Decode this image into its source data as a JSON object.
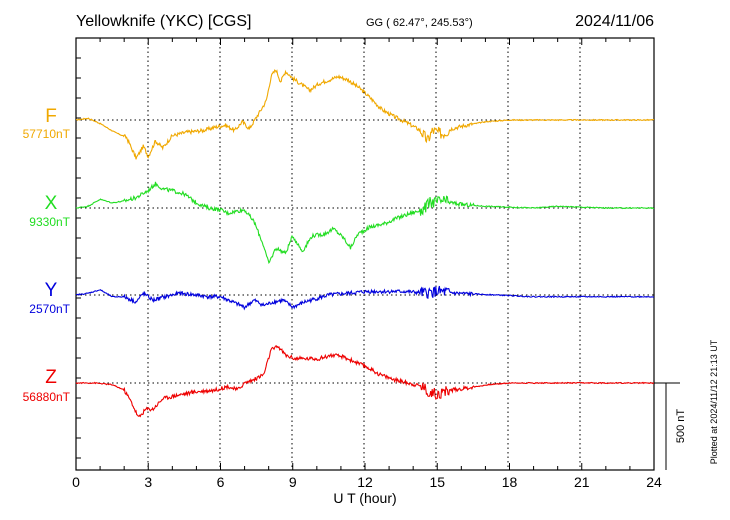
{
  "header": {
    "station": "Yellowknife (YKC)  [CGS]",
    "coords": "GG ( 62.47°, 245.53°)",
    "date": "2024/11/06"
  },
  "footer": {
    "plotted": "Plotted at 2024/11/12 21:13 UT"
  },
  "chart_data": {
    "type": "line",
    "title": "Yellowknife (YKC)  [CGS]",
    "xlabel": "U T (hour)",
    "ylabel": "",
    "xlim": [
      0,
      24
    ],
    "x_ticks": [
      0,
      3,
      6,
      9,
      12,
      15,
      18,
      21,
      24
    ],
    "x_tick_labels": [
      "0",
      "3",
      "6",
      "9",
      "12",
      "15",
      "18",
      "21",
      "24"
    ],
    "grid": true,
    "scale_bar": {
      "label": "500 nT",
      "value_nT": 500
    },
    "series": [
      {
        "name": "F",
        "baseline_label": "57710nT",
        "baseline_nT": 57710,
        "color": "#f0a800",
        "points": [
          [
            0,
            0
          ],
          [
            0.5,
            10
          ],
          [
            1,
            -20
          ],
          [
            1.6,
            -70
          ],
          [
            2.1,
            -100
          ],
          [
            2.5,
            -220
          ],
          [
            2.8,
            -150
          ],
          [
            3,
            -210
          ],
          [
            3.3,
            -120
          ],
          [
            3.6,
            -160
          ],
          [
            4,
            -90
          ],
          [
            4.6,
            -70
          ],
          [
            5.3,
            -60
          ],
          [
            5.8,
            -40
          ],
          [
            6.2,
            -30
          ],
          [
            6.6,
            -60
          ],
          [
            6.9,
            -10
          ],
          [
            7.2,
            -50
          ],
          [
            7.6,
            40
          ],
          [
            7.9,
            110
          ],
          [
            8.1,
            250
          ],
          [
            8.3,
            290
          ],
          [
            8.5,
            220
          ],
          [
            8.7,
            280
          ],
          [
            9,
            240
          ],
          [
            9.4,
            200
          ],
          [
            9.7,
            170
          ],
          [
            10.1,
            210
          ],
          [
            10.5,
            230
          ],
          [
            10.9,
            250
          ],
          [
            11.3,
            230
          ],
          [
            11.8,
            180
          ],
          [
            12.2,
            130
          ],
          [
            12.7,
            60
          ],
          [
            13.2,
            20
          ],
          [
            13.8,
            -20
          ],
          [
            14.3,
            -60
          ],
          [
            14.6,
            -120
          ],
          [
            14.8,
            -60
          ],
          [
            15.2,
            -80
          ],
          [
            15.6,
            -50
          ],
          [
            16.2,
            -30
          ],
          [
            17,
            -10
          ],
          [
            18,
            0
          ],
          [
            20,
            0
          ],
          [
            22,
            0
          ],
          [
            24,
            0
          ]
        ]
      },
      {
        "name": "X",
        "baseline_label": "9330nT",
        "baseline_nT": 9330,
        "color": "#22dd22",
        "points": [
          [
            0,
            0
          ],
          [
            0.5,
            10
          ],
          [
            1,
            50
          ],
          [
            1.5,
            30
          ],
          [
            2,
            40
          ],
          [
            2.5,
            60
          ],
          [
            3,
            100
          ],
          [
            3.3,
            140
          ],
          [
            3.6,
            110
          ],
          [
            4,
            100
          ],
          [
            4.5,
            80
          ],
          [
            5,
            30
          ],
          [
            5.5,
            0
          ],
          [
            6,
            -10
          ],
          [
            6.3,
            -30
          ],
          [
            6.6,
            -20
          ],
          [
            7,
            -10
          ],
          [
            7.4,
            -80
          ],
          [
            7.8,
            -220
          ],
          [
            8,
            -320
          ],
          [
            8.3,
            -230
          ],
          [
            8.7,
            -260
          ],
          [
            9,
            -160
          ],
          [
            9.4,
            -250
          ],
          [
            9.8,
            -160
          ],
          [
            10.3,
            -150
          ],
          [
            10.7,
            -120
          ],
          [
            11.1,
            -170
          ],
          [
            11.4,
            -230
          ],
          [
            11.7,
            -150
          ],
          [
            12.2,
            -110
          ],
          [
            12.8,
            -90
          ],
          [
            13.3,
            -60
          ],
          [
            13.9,
            -30
          ],
          [
            14.4,
            -10
          ],
          [
            14.7,
            30
          ],
          [
            15.2,
            40
          ],
          [
            16,
            20
          ],
          [
            17,
            10
          ],
          [
            18,
            5
          ],
          [
            19,
            0
          ],
          [
            20,
            10
          ],
          [
            21,
            5
          ],
          [
            22,
            0
          ],
          [
            24,
            0
          ]
        ]
      },
      {
        "name": "Y",
        "baseline_label": "2570nT",
        "baseline_nT": 2570,
        "color": "#0000dd",
        "points": [
          [
            0,
            0
          ],
          [
            0.5,
            10
          ],
          [
            1,
            30
          ],
          [
            1.5,
            -10
          ],
          [
            2,
            -10
          ],
          [
            2.5,
            -40
          ],
          [
            2.8,
            10
          ],
          [
            3.2,
            -30
          ],
          [
            3.7,
            -10
          ],
          [
            4.3,
            10
          ],
          [
            5,
            0
          ],
          [
            5.5,
            -10
          ],
          [
            6,
            -10
          ],
          [
            6.5,
            -40
          ],
          [
            7,
            -70
          ],
          [
            7.4,
            -30
          ],
          [
            7.8,
            -60
          ],
          [
            8.2,
            -40
          ],
          [
            8.6,
            -30
          ],
          [
            9,
            -70
          ],
          [
            9.5,
            -40
          ],
          [
            10,
            -20
          ],
          [
            10.5,
            0
          ],
          [
            11.3,
            10
          ],
          [
            12.1,
            20
          ],
          [
            12.9,
            20
          ],
          [
            13.7,
            20
          ],
          [
            14.5,
            10
          ],
          [
            15,
            20
          ],
          [
            15.8,
            10
          ],
          [
            16.6,
            5
          ],
          [
            17.5,
            0
          ],
          [
            19,
            -10
          ],
          [
            21,
            -10
          ],
          [
            22.5,
            -10
          ],
          [
            24,
            -10
          ]
        ]
      },
      {
        "name": "Z",
        "baseline_label": "56880nT",
        "baseline_nT": 56880,
        "color": "#ee0000",
        "points": [
          [
            0,
            0
          ],
          [
            0.8,
            0
          ],
          [
            1.5,
            -10
          ],
          [
            2,
            -40
          ],
          [
            2.3,
            -110
          ],
          [
            2.6,
            -200
          ],
          [
            2.9,
            -150
          ],
          [
            3.2,
            -150
          ],
          [
            3.6,
            -90
          ],
          [
            4.2,
            -70
          ],
          [
            5,
            -50
          ],
          [
            5.8,
            -40
          ],
          [
            6.3,
            -20
          ],
          [
            6.7,
            -40
          ],
          [
            7,
            0
          ],
          [
            7.4,
            20
          ],
          [
            7.8,
            50
          ],
          [
            8.1,
            190
          ],
          [
            8.4,
            210
          ],
          [
            8.7,
            160
          ],
          [
            9.1,
            140
          ],
          [
            9.6,
            140
          ],
          [
            10.1,
            140
          ],
          [
            10.6,
            160
          ],
          [
            11.1,
            150
          ],
          [
            11.6,
            120
          ],
          [
            12.1,
            90
          ],
          [
            12.6,
            50
          ],
          [
            13.2,
            20
          ],
          [
            13.8,
            0
          ],
          [
            14.4,
            -20
          ],
          [
            14.7,
            -60
          ],
          [
            15.1,
            -60
          ],
          [
            15.6,
            -40
          ],
          [
            16.2,
            -30
          ],
          [
            17.1,
            -10
          ],
          [
            18,
            0
          ],
          [
            19.2,
            0
          ],
          [
            21,
            0
          ],
          [
            24,
            0
          ]
        ]
      }
    ]
  }
}
